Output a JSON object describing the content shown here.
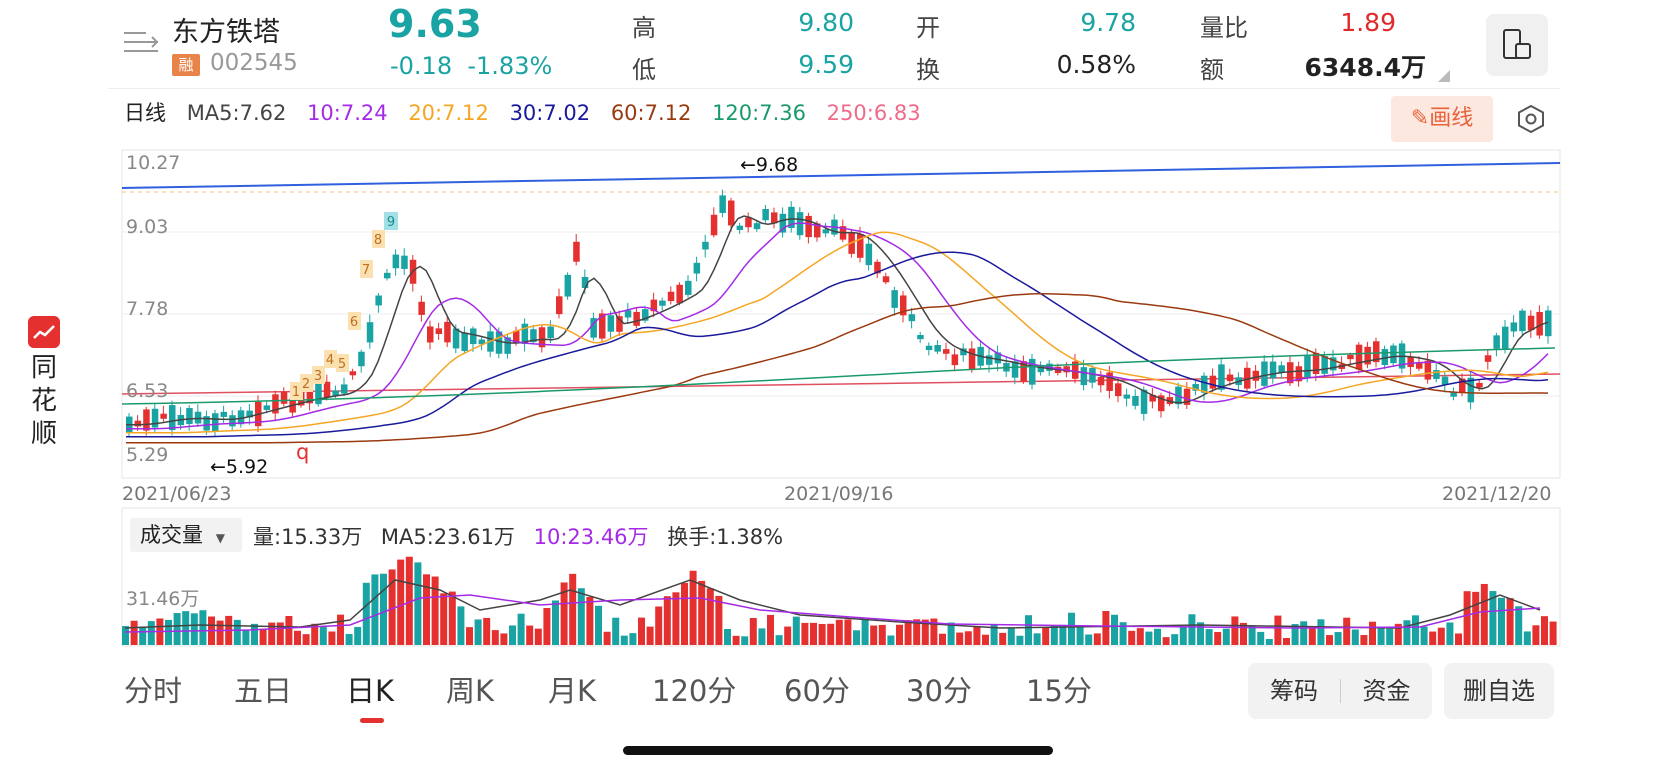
{
  "header": {
    "stock_name": "东方铁塔",
    "rong_badge": "融",
    "code": "002545",
    "price": "9.63",
    "change": "-0.18",
    "change_pct": "-1.83%",
    "high_label": "高",
    "high": "9.80",
    "low_label": "低",
    "low": "9.59",
    "open_label": "开",
    "open": "9.78",
    "turnover_label": "换",
    "turnover": "0.58%",
    "vol_ratio_label": "量比",
    "vol_ratio": "1.89",
    "amount_label": "额",
    "amount": "6348.4万"
  },
  "ma_bar": {
    "period": "日线",
    "ma5": "MA5:7.62",
    "ma10": "10:7.24",
    "ma20": "20:7.12",
    "ma30": "30:7.02",
    "ma60": "60:7.12",
    "ma120": "120:7.36",
    "ma250": "250:6.83",
    "draw_label": "画线"
  },
  "colors": {
    "up": "#e53030",
    "down": "#1aa3a3",
    "ma5": "#444444",
    "ma10": "#a52ae6",
    "ma20": "#f5a623",
    "ma30": "#1a1a9a",
    "ma60": "#9a3a10",
    "ma120": "#1a9a6a",
    "ma250": "#f06a8a"
  },
  "side": {
    "app_name": [
      "同",
      "花",
      "顺"
    ]
  },
  "chart": {
    "y_ticks": [
      "10.27",
      "9.03",
      "7.78",
      "6.53",
      "5.29"
    ],
    "dates": [
      "2021/06/23",
      "2021/09/16",
      "2021/12/20"
    ],
    "max_marker": "←9.68",
    "min_marker": "←5.92",
    "q_marker": "q"
  },
  "volume": {
    "title": "成交量",
    "vol": "量:15.33万",
    "ma5": "MA5:23.61万",
    "ma10": "10:23.46万",
    "turnover": "换手:1.38%",
    "y_tick": "31.46万"
  },
  "tabs": [
    "分时",
    "五日",
    "日K",
    "周K",
    "月K",
    "120分",
    "60分",
    "30分",
    "15分"
  ],
  "buttons": {
    "chips": "筹码",
    "funds": "资金",
    "delete": "删自选"
  }
}
